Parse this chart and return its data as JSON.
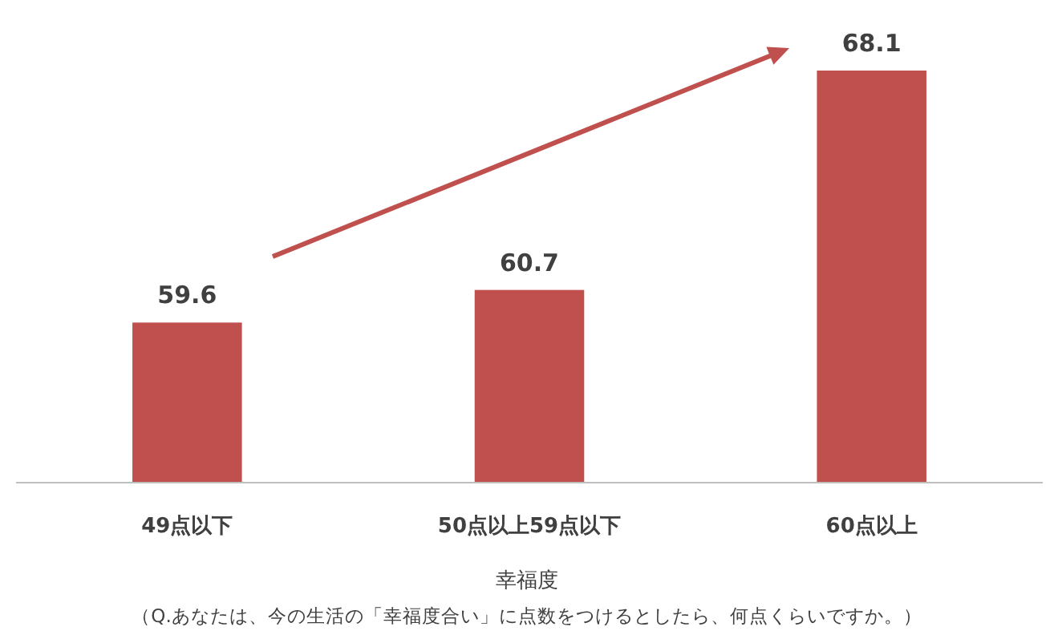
{
  "chart_data": {
    "type": "bar",
    "categories": [
      "49点以下",
      "50点以上59点以下",
      "60点以上"
    ],
    "values": [
      59.6,
      60.7,
      68.1
    ],
    "color": "#c0504d",
    "ylim": [
      54.2,
      68.1
    ],
    "data_labels": true,
    "xlabel": "幸福度",
    "annotations": [
      "（Q.あなたは、今の生活の「幸福度合い」に点数をつけるとしたら、何点くらいですか。）"
    ]
  }
}
